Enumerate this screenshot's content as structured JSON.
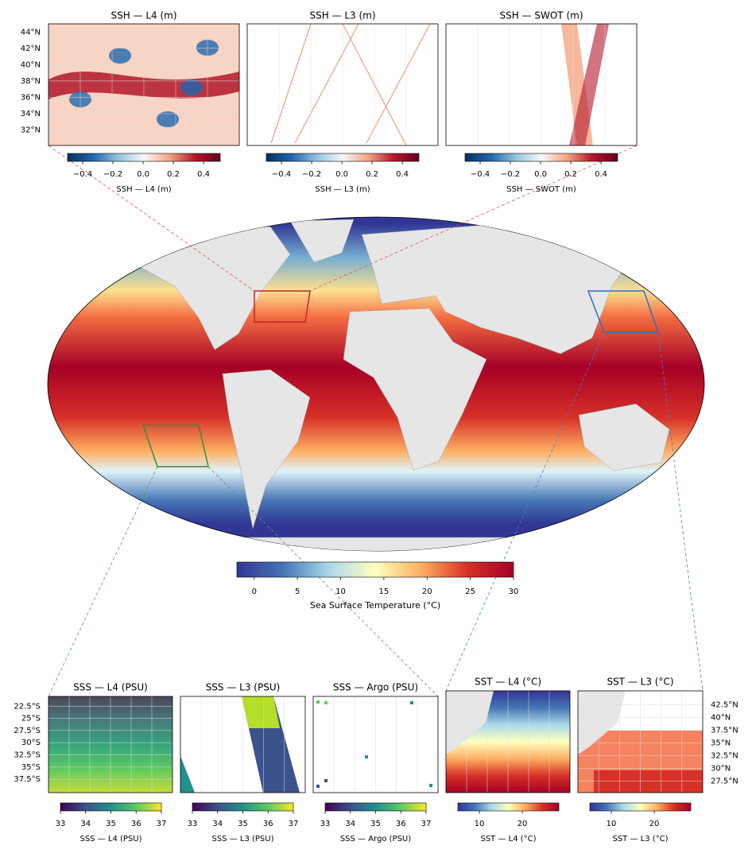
{
  "main_map": {
    "colorbar": {
      "label": "Sea Surface Temperature (°C)",
      "colormap": "RdYlBu_r",
      "lim": [
        -2,
        30
      ],
      "ticks": [
        0,
        5,
        10,
        15,
        20,
        25,
        30
      ]
    }
  },
  "panels": [
    {
      "title": "SSH — L4 (m)",
      "colorbar": {
        "label": "SSH — L4 (m)",
        "colormap": "RdBu_r",
        "lim": [
          -0.5,
          0.51
        ],
        "ticks": [
          {
            "value": -0.4,
            "label": "−0.4"
          },
          {
            "value": -0.2,
            "label": "−0.2"
          },
          {
            "value": 0,
            "label": "0.0"
          },
          0.2,
          0.4
        ]
      },
      "lat_axis": {
        "side": "left",
        "ylim": [
          30.1,
          45
        ],
        "ticks": [
          {
            "value": 44,
            "label": "44°N"
          },
          {
            "value": 42,
            "label": "42°N"
          },
          {
            "value": 40,
            "label": "40°N"
          },
          {
            "value": 38,
            "label": "38°N"
          },
          {
            "value": 36,
            "label": "36°N"
          },
          {
            "value": 34,
            "label": "34°N"
          },
          {
            "value": 32,
            "label": "32°N"
          }
        ]
      }
    },
    {
      "title": "SSH — L3 (m)",
      "colorbar": {
        "label": "SSH — L3 (m)",
        "colormap": "RdBu_r",
        "lim": [
          -0.5,
          0.51
        ],
        "ticks": [
          {
            "value": -0.4,
            "label": "−0.4"
          },
          {
            "value": -0.2,
            "label": "−0.2"
          },
          {
            "value": 0,
            "label": "0.0"
          },
          0.2,
          0.4
        ]
      }
    },
    {
      "title": "SSH — SWOT (m)",
      "colorbar": {
        "label": "SSH — SWOT (m)",
        "colormap": "RdBu_r",
        "lim": [
          -0.5,
          0.51
        ],
        "ticks": [
          {
            "value": -0.4,
            "label": "−0.4"
          },
          {
            "value": -0.2,
            "label": "−0.2"
          },
          {
            "value": 0,
            "label": "0.0"
          },
          0.2,
          0.4
        ]
      }
    },
    {
      "title": "SSS — L4 (PSU)",
      "colorbar": {
        "label": "SSS — L4 (PSU)",
        "colormap": "viridis",
        "lim": [
          33,
          37
        ],
        "ticks": [
          33,
          34,
          35,
          36,
          37
        ]
      },
      "lat_axis": {
        "side": "left",
        "ylim": [
          -40.25,
          -20.5
        ],
        "ticks": [
          {
            "value": -22.5,
            "label": "22.5°S"
          },
          {
            "value": -25,
            "label": "25°S"
          },
          {
            "value": -27.5,
            "label": "27.5°S"
          },
          {
            "value": -30,
            "label": "30°S"
          },
          {
            "value": -32.5,
            "label": "32.5°S"
          },
          {
            "value": -35,
            "label": "35°S"
          },
          {
            "value": -37.5,
            "label": "37.5°S"
          }
        ]
      }
    },
    {
      "title": "SSS — L3 (PSU)",
      "colorbar": {
        "label": "SSS — L3 (PSU)",
        "colormap": "viridis",
        "lim": [
          33,
          37
        ],
        "ticks": [
          33,
          34,
          35,
          36,
          37
        ]
      }
    },
    {
      "title": "SSS — Argo (PSU)",
      "colorbar": {
        "label": "SSS — Argo (PSU)",
        "colormap": "viridis",
        "lim": [
          33,
          37
        ],
        "ticks": [
          33,
          34,
          35,
          36,
          37
        ]
      }
    },
    {
      "title": "SST — L4 (°C)",
      "colorbar": {
        "label": "SST — L4 (°C)",
        "colormap": "RdYlBu_r",
        "lim": [
          5,
          28.5
        ],
        "ticks": [
          10,
          20
        ]
      }
    },
    {
      "title": "SST — L3 (°C)",
      "colorbar": {
        "label": "SST — L3 (°C)",
        "colormap": "RdYlBu_r",
        "lim": [
          5,
          28.5
        ],
        "ticks": [
          10,
          20
        ]
      },
      "lat_axis": {
        "side": "right",
        "ylim": [
          25.2,
          45.2
        ],
        "ticks": [
          {
            "value": 42.5,
            "label": "42.5°N"
          },
          {
            "value": 40,
            "label": "40°N"
          },
          {
            "value": 37.5,
            "label": "37.5°N"
          },
          {
            "value": 35,
            "label": "35°N"
          },
          {
            "value": 32.5,
            "label": "32.5°N"
          },
          {
            "value": 30,
            "label": "30°N"
          },
          {
            "value": 27.5,
            "label": "27.5°N"
          }
        ]
      }
    }
  ]
}
